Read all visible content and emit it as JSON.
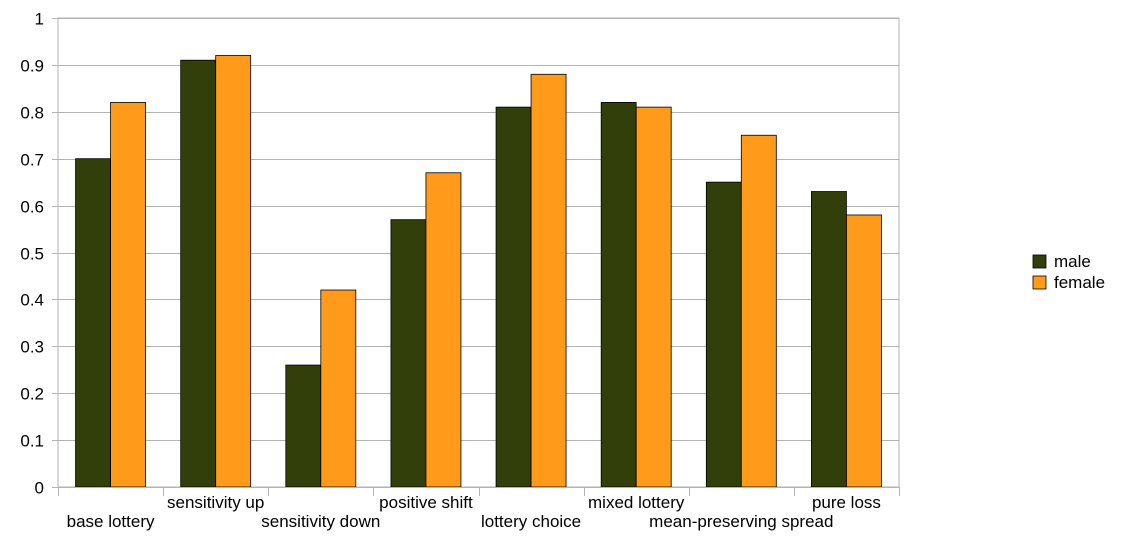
{
  "chart_data": {
    "type": "bar",
    "title": "",
    "xlabel": "",
    "ylabel": "",
    "ylim": [
      0,
      1
    ],
    "yticks": [
      0,
      0.1,
      0.2,
      0.3,
      0.4,
      0.5,
      0.6,
      0.7,
      0.8,
      0.9,
      1
    ],
    "ytick_labels": [
      "0",
      "0.1",
      "0.2",
      "0.3",
      "0.4",
      "0.5",
      "0.6",
      "0.7",
      "0.8",
      "0.9",
      "1"
    ],
    "grid": "y",
    "legend_position": "right",
    "categories": [
      "base lottery",
      "sensitivity up",
      "sensitivity down",
      "positive shift",
      "lottery choice",
      "mixed lottery",
      "mean-preserving spread",
      "pure loss"
    ],
    "series": [
      {
        "name": "male",
        "color": "#333f0a",
        "values": [
          0.7,
          0.91,
          0.26,
          0.57,
          0.81,
          0.82,
          0.65,
          0.63
        ]
      },
      {
        "name": "female",
        "color": "#ff9a1a",
        "values": [
          0.82,
          0.92,
          0.42,
          0.67,
          0.88,
          0.81,
          0.75,
          0.58
        ]
      }
    ]
  }
}
